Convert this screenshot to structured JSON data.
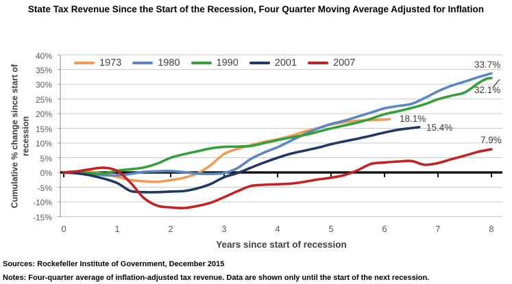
{
  "title": "State Tax Revenue Since the Start of the Recession, Four Quarter Moving Average Adjusted for Inflation",
  "footer": {
    "sources": "Sources: Rockefeller Institute of Government, December 2015",
    "notes": "Notes: Four-quarter average of inflation-adjusted tax revenue. Data are shown only until the start of the next recession."
  },
  "chart_data": {
    "type": "line",
    "title": "State Tax Revenue Since the Start of the Recession, Four Quarter Moving Average Adjusted for Inflation",
    "xlabel": "Years since start of recession",
    "ylabel_line1": "Cumulative % change since start of",
    "ylabel_line2": "recession",
    "xlim": [
      0,
      8
    ],
    "ylim_pct": [
      -15,
      40
    ],
    "grid": true,
    "legend_position": "top",
    "x_ticks": [
      "0",
      "1",
      "2",
      "3",
      "4",
      "5",
      "6",
      "7",
      "8"
    ],
    "y_ticks": [
      "40%",
      "35%",
      "30%",
      "25%",
      "20%",
      "15%",
      "10%",
      "5%",
      "0%",
      "-5%",
      "-10%",
      "-15%"
    ],
    "series": [
      {
        "name": "1973",
        "color": "#F09B55",
        "end_label": "18.1%",
        "end_value": 18.1,
        "points": [
          [
            0,
            0
          ],
          [
            0.25,
            0.2
          ],
          [
            0.5,
            0.1
          ],
          [
            0.75,
            -0.4
          ],
          [
            1,
            -1.5
          ],
          [
            1.25,
            -2.6
          ],
          [
            1.5,
            -3.0
          ],
          [
            1.75,
            -3.2
          ],
          [
            2,
            -2.6
          ],
          [
            2.25,
            -1.8
          ],
          [
            2.5,
            -0.3
          ],
          [
            2.75,
            2.5
          ],
          [
            3,
            6.3
          ],
          [
            3.25,
            8.0
          ],
          [
            3.5,
            9.3
          ],
          [
            3.75,
            10.4
          ],
          [
            4,
            11.3
          ],
          [
            4.25,
            12.4
          ],
          [
            4.5,
            13.9
          ],
          [
            4.75,
            15.1
          ],
          [
            5,
            16.3
          ],
          [
            5.25,
            17.1
          ],
          [
            5.5,
            17.6
          ],
          [
            5.75,
            17.8
          ],
          [
            6,
            18.0
          ],
          [
            6.1,
            18.1
          ]
        ]
      },
      {
        "name": "1980",
        "color": "#5B86C4",
        "end_label": "33.7%",
        "end_value": 33.7,
        "points": [
          [
            0,
            0
          ],
          [
            0.25,
            -0.1
          ],
          [
            0.5,
            -0.4
          ],
          [
            0.75,
            -0.9
          ],
          [
            1,
            -1.0
          ],
          [
            1.25,
            -0.5
          ],
          [
            1.5,
            0.2
          ],
          [
            1.75,
            0.4
          ],
          [
            2,
            0.5
          ],
          [
            2.25,
            0.1
          ],
          [
            2.5,
            -0.4
          ],
          [
            2.75,
            -0.5
          ],
          [
            3,
            -0.2
          ],
          [
            3.25,
            1.5
          ],
          [
            3.5,
            4.6
          ],
          [
            3.75,
            6.8
          ],
          [
            4,
            8.6
          ],
          [
            4.25,
            10.8
          ],
          [
            4.5,
            13.0
          ],
          [
            4.75,
            14.9
          ],
          [
            5,
            16.5
          ],
          [
            5.25,
            17.6
          ],
          [
            5.5,
            19.0
          ],
          [
            5.75,
            20.4
          ],
          [
            6,
            21.8
          ],
          [
            6.25,
            22.6
          ],
          [
            6.5,
            23.3
          ],
          [
            6.75,
            25.3
          ],
          [
            7,
            27.6
          ],
          [
            7.25,
            29.5
          ],
          [
            7.5,
            30.9
          ],
          [
            7.75,
            32.4
          ],
          [
            8,
            33.7
          ]
        ]
      },
      {
        "name": "1990",
        "color": "#34A03C",
        "end_label": "32.1%",
        "end_value": 32.1,
        "points": [
          [
            0,
            0
          ],
          [
            0.25,
            0.3
          ],
          [
            0.5,
            -0.2
          ],
          [
            0.75,
            -0.4
          ],
          [
            1,
            0.6
          ],
          [
            1.25,
            1.1
          ],
          [
            1.5,
            1.7
          ],
          [
            1.75,
            3.0
          ],
          [
            2,
            5.0
          ],
          [
            2.25,
            6.2
          ],
          [
            2.5,
            7.2
          ],
          [
            2.75,
            8.2
          ],
          [
            3,
            8.7
          ],
          [
            3.25,
            8.8
          ],
          [
            3.5,
            9.0
          ],
          [
            3.75,
            10.0
          ],
          [
            4,
            11.0
          ],
          [
            4.25,
            11.9
          ],
          [
            4.5,
            12.7
          ],
          [
            4.75,
            13.8
          ],
          [
            5,
            15.0
          ],
          [
            5.25,
            16.0
          ],
          [
            5.5,
            17.0
          ],
          [
            5.75,
            18.3
          ],
          [
            6,
            19.8
          ],
          [
            6.25,
            20.8
          ],
          [
            6.5,
            21.9
          ],
          [
            6.75,
            23.2
          ],
          [
            7,
            24.9
          ],
          [
            7.25,
            26.1
          ],
          [
            7.5,
            27.2
          ],
          [
            7.75,
            30.3
          ],
          [
            7.9,
            31.8
          ],
          [
            8,
            32.1
          ]
        ]
      },
      {
        "name": "2001",
        "color": "#1F3864",
        "end_label": "15.4%",
        "end_value": 15.4,
        "points": [
          [
            0,
            0
          ],
          [
            0.25,
            -0.3
          ],
          [
            0.5,
            -1.0
          ],
          [
            0.75,
            -2.1
          ],
          [
            1,
            -3.6
          ],
          [
            1.25,
            -6.3
          ],
          [
            1.5,
            -6.7
          ],
          [
            1.75,
            -6.7
          ],
          [
            2,
            -6.5
          ],
          [
            2.25,
            -6.3
          ],
          [
            2.5,
            -5.4
          ],
          [
            2.75,
            -3.9
          ],
          [
            3,
            -1.6
          ],
          [
            3.25,
            -0.2
          ],
          [
            3.5,
            1.6
          ],
          [
            3.75,
            3.4
          ],
          [
            4,
            5.0
          ],
          [
            4.25,
            6.4
          ],
          [
            4.5,
            7.4
          ],
          [
            4.75,
            8.4
          ],
          [
            5,
            9.6
          ],
          [
            5.25,
            10.6
          ],
          [
            5.5,
            11.5
          ],
          [
            5.75,
            12.5
          ],
          [
            6,
            13.6
          ],
          [
            6.25,
            14.5
          ],
          [
            6.5,
            15.1
          ],
          [
            6.65,
            15.4
          ]
        ]
      },
      {
        "name": "2007",
        "color": "#C02321",
        "end_label": "7.9%",
        "end_value": 7.9,
        "points": [
          [
            0,
            0
          ],
          [
            0.25,
            0.4
          ],
          [
            0.5,
            1.1
          ],
          [
            0.75,
            1.6
          ],
          [
            1,
            0.5
          ],
          [
            1.25,
            -3.5
          ],
          [
            1.5,
            -8.7
          ],
          [
            1.75,
            -11.3
          ],
          [
            2,
            -11.9
          ],
          [
            2.25,
            -12.1
          ],
          [
            2.5,
            -11.4
          ],
          [
            2.75,
            -10.3
          ],
          [
            3,
            -8.4
          ],
          [
            3.25,
            -6.4
          ],
          [
            3.5,
            -4.6
          ],
          [
            3.75,
            -4.2
          ],
          [
            4,
            -4.0
          ],
          [
            4.25,
            -3.8
          ],
          [
            4.5,
            -3.2
          ],
          [
            4.75,
            -2.4
          ],
          [
            5,
            -1.8
          ],
          [
            5.25,
            -0.9
          ],
          [
            5.5,
            0.8
          ],
          [
            5.75,
            2.9
          ],
          [
            6,
            3.4
          ],
          [
            6.25,
            3.7
          ],
          [
            6.5,
            3.9
          ],
          [
            6.75,
            2.6
          ],
          [
            7,
            3.2
          ],
          [
            7.25,
            4.5
          ],
          [
            7.5,
            5.7
          ],
          [
            7.75,
            7.0
          ],
          [
            8,
            7.9
          ]
        ]
      }
    ]
  }
}
